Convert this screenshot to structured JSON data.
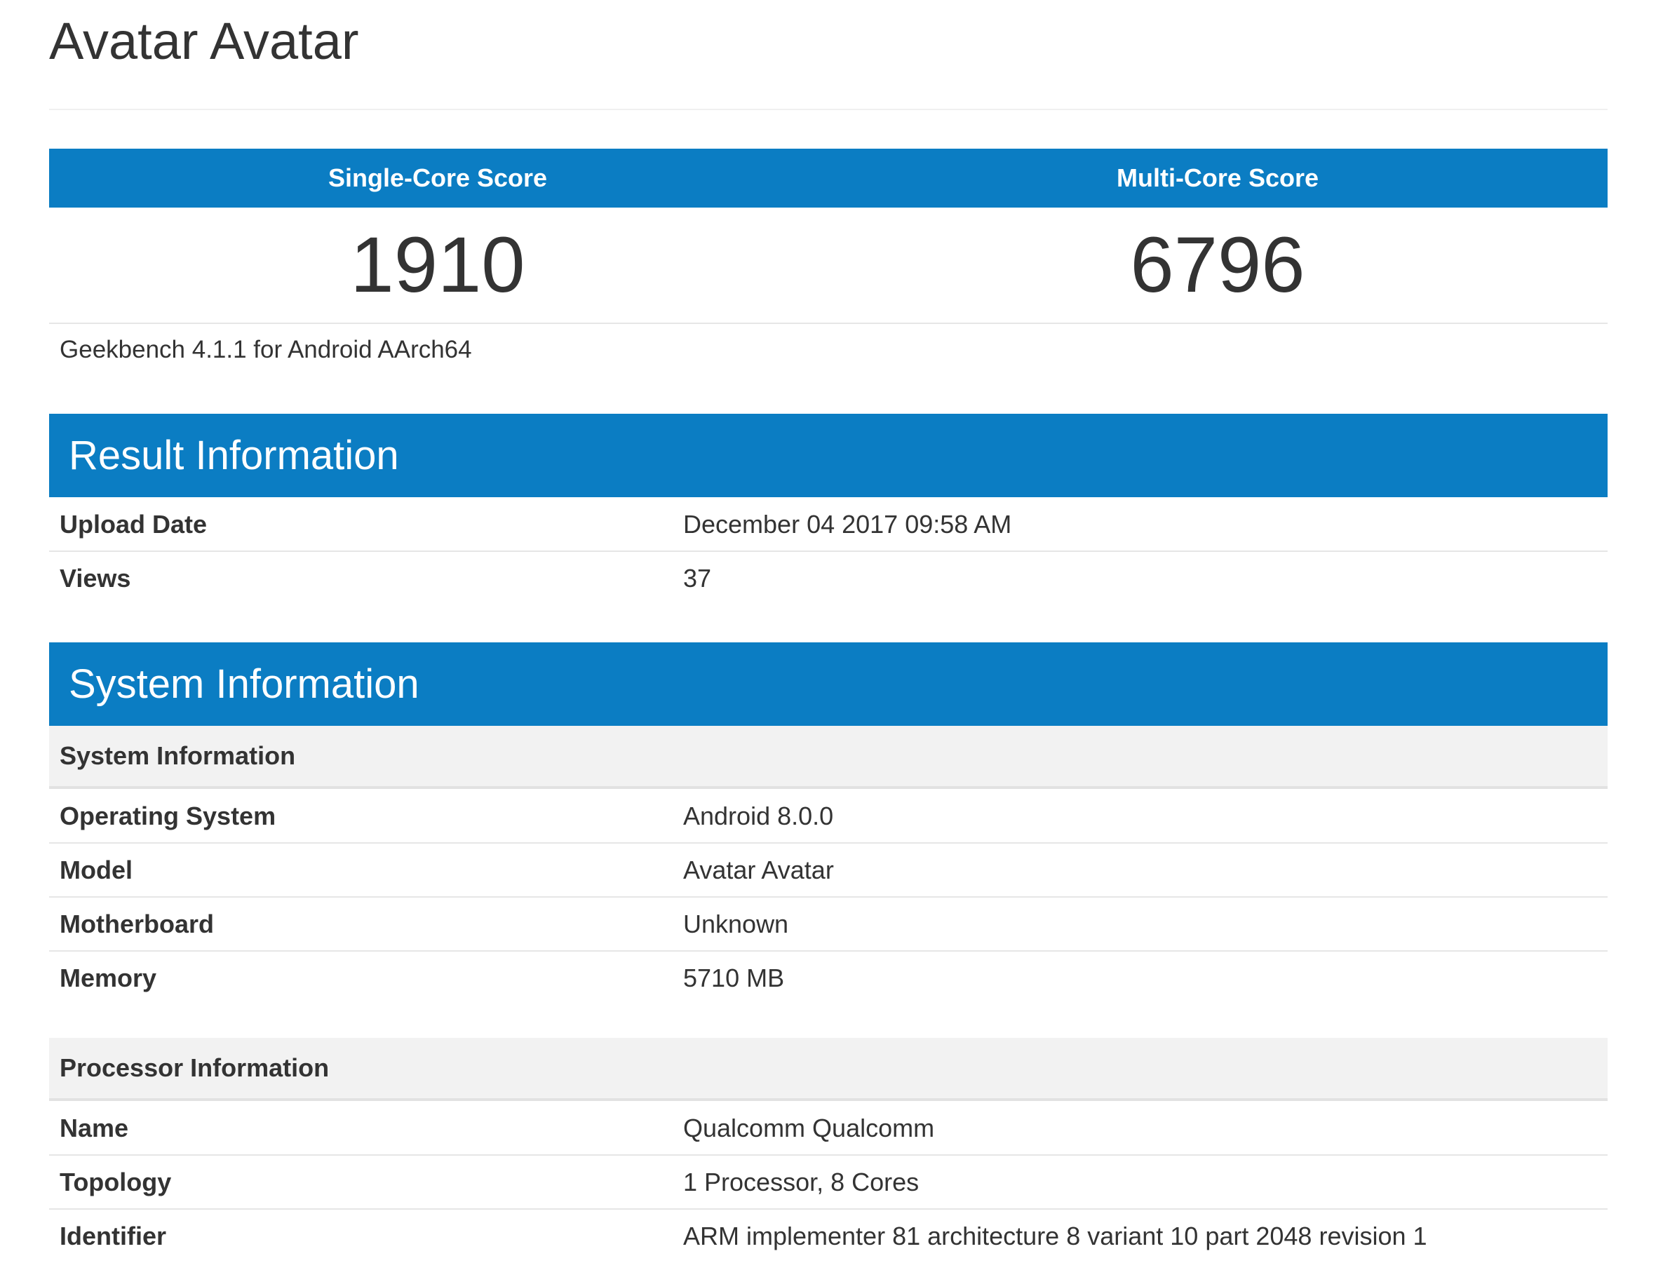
{
  "header": {
    "title": "Avatar Avatar"
  },
  "scores": [
    {
      "label": "Single-Core Score",
      "value": 1910
    },
    {
      "label": "Multi-Core Score",
      "value": 6796
    }
  ],
  "version": "Geekbench 4.1.1 for Android AArch64",
  "sections": [
    {
      "title": "Result Information",
      "groups": [
        {
          "rows": [
            [
              "Upload Date",
              "December 04 2017 09:58 AM"
            ],
            [
              "Views",
              37
            ]
          ]
        }
      ]
    },
    {
      "title": "System Information",
      "groups": [
        {
          "title": "System Information",
          "rows": [
            [
              "Operating System",
              "Android 8.0.0"
            ],
            [
              "Model",
              "Avatar Avatar"
            ],
            [
              "Motherboard",
              "Unknown"
            ],
            [
              "Memory",
              "5710 MB"
            ]
          ]
        },
        {
          "title": "Processor Information",
          "rows": [
            [
              "Name",
              "Qualcomm Qualcomm"
            ],
            [
              "Topology",
              "1 Processor, 8 Cores"
            ],
            [
              "Identifier",
              "ARM implementer 81 architecture 8 variant 10 part 2048 revision 1"
            ]
          ]
        }
      ]
    }
  ]
}
